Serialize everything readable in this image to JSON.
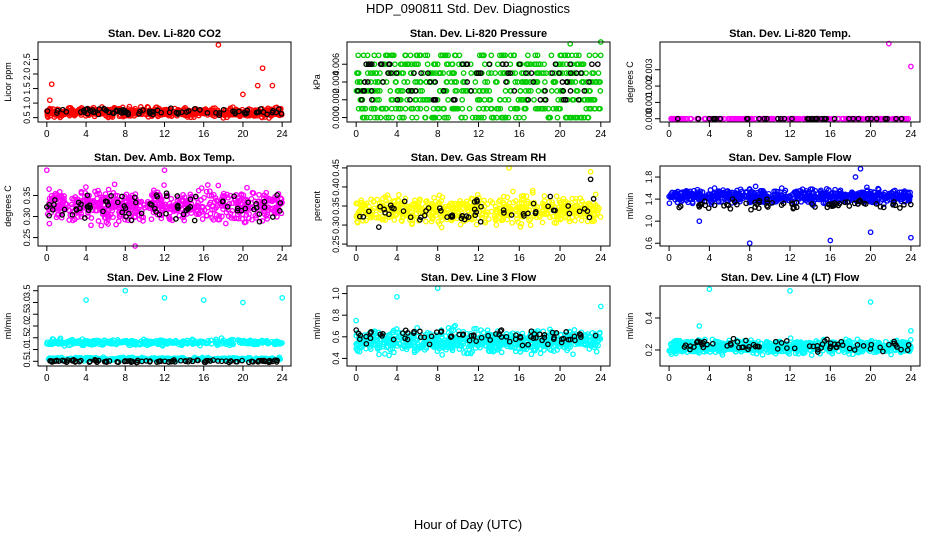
{
  "title": "HDP_090811  Std. Dev. Diagnostics",
  "xlabel": "Hour of Day (UTC)",
  "colors": {
    "black": "#000000",
    "red": "#ff0000",
    "green": "#00cc00",
    "magenta": "#ff00ff",
    "yellow": "#ffff00",
    "blue": "#0000ff",
    "cyan": "#00ffff"
  },
  "chart_data": [
    {
      "type": "scatter",
      "title": "Stan. Dev. Li-820 CO2",
      "ylabel": "Licor ppm",
      "xlim": [
        -0.9,
        24.9
      ],
      "ylim": [
        0.35,
        3.1
      ],
      "xticks": [
        0,
        4,
        8,
        12,
        16,
        20,
        24
      ],
      "yticks": [
        0.5,
        1.0,
        1.5,
        2.0,
        2.5
      ],
      "ytick_labels": [
        "0.5",
        "1.0",
        "1.5",
        "2.0",
        "2.5"
      ],
      "color": "red",
      "count": 620,
      "black_count": 80,
      "base": 0.68,
      "spread": 0.15,
      "black_base": 0.7,
      "black_spread": 0.1,
      "outliers": [
        [
          0.5,
          1.65
        ],
        [
          17.5,
          3.0
        ],
        [
          22,
          2.2
        ],
        [
          23,
          1.6
        ],
        [
          21.5,
          1.6
        ],
        [
          0.3,
          1.1
        ],
        [
          20,
          1.3
        ]
      ],
      "black_outliers": []
    },
    {
      "type": "scatter",
      "title": "Stan. Dev. Li-820 Pressure",
      "ylabel": "kPa",
      "xlim": [
        -0.9,
        24.9
      ],
      "ylim": [
        -0.0005,
        0.0085
      ],
      "xticks": [
        0,
        4,
        8,
        12,
        16,
        20,
        24
      ],
      "yticks": [
        0,
        0.002,
        0.004,
        0.006
      ],
      "ytick_labels": [
        "0.000",
        "0.002",
        "0.004",
        "0.006"
      ],
      "color": "green",
      "count": 560,
      "black_count": 80,
      "levels": [
        0,
        0.001,
        0.002,
        0.003,
        0.004,
        0.005,
        0.006,
        0.007
      ],
      "black_levels": [
        0.002,
        0.003,
        0.004,
        0.005,
        0.006
      ],
      "outliers": [
        [
          24,
          0.0085
        ],
        [
          21,
          0.0083
        ]
      ],
      "black_outliers": []
    },
    {
      "type": "scatter",
      "title": "Stan. Dev. Li-820 Temp.",
      "ylabel": "degrees C",
      "xlim": [
        -0.9,
        24.9
      ],
      "ylim": [
        -0.0002,
        0.0047
      ],
      "xticks": [
        0,
        4,
        8,
        12,
        16,
        20,
        24
      ],
      "yticks": [
        0,
        0.001,
        0.002,
        0.003
      ],
      "ytick_labels": [
        "0.000",
        "0.001",
        "0.002",
        "0.003"
      ],
      "color": "magenta",
      "count": 200,
      "black_count": 40,
      "levels": [
        0
      ],
      "black_levels": [
        0
      ],
      "outliers": [
        [
          21.8,
          0.0046
        ],
        [
          24,
          0.0032
        ]
      ],
      "black_outliers": []
    },
    {
      "type": "scatter",
      "title": "Stan. Dev. Amb. Box Temp.",
      "ylabel": "degrees C",
      "xlim": [
        -0.9,
        24.9
      ],
      "ylim": [
        0.23,
        0.42
      ],
      "xticks": [
        0,
        4,
        8,
        12,
        16,
        20,
        24
      ],
      "yticks": [
        0.25,
        0.3,
        0.35
      ],
      "ytick_labels": [
        "0.25",
        "0.30",
        "0.35"
      ],
      "color": "magenta",
      "count": 600,
      "black_count": 80,
      "base": 0.325,
      "spread": 0.035,
      "black_base": 0.325,
      "black_spread": 0.03,
      "outliers": [
        [
          9,
          0.23
        ],
        [
          0,
          0.41
        ],
        [
          12,
          0.41
        ]
      ],
      "black_outliers": []
    },
    {
      "type": "scatter",
      "title": "Stan. Dev. Gas Stream RH",
      "ylabel": "percent",
      "xlim": [
        -0.9,
        24.9
      ],
      "ylim": [
        0.245,
        0.455
      ],
      "xticks": [
        0,
        4,
        8,
        12,
        16,
        20,
        24
      ],
      "yticks": [
        0.25,
        0.3,
        0.35,
        0.4,
        0.45
      ],
      "ytick_labels": [
        "0.25",
        "0.30",
        "0.35",
        "0.40",
        "0.45"
      ],
      "color": "yellow",
      "count": 600,
      "black_count": 60,
      "base": 0.34,
      "spread": 0.035,
      "black_base": 0.335,
      "black_spread": 0.035,
      "outliers": [
        [
          15,
          0.45
        ],
        [
          23,
          0.44
        ]
      ],
      "black_outliers": [
        [
          23,
          0.42
        ]
      ]
    },
    {
      "type": "scatter",
      "title": "Stan. Dev. Sample Flow",
      "ylabel": "ml/min",
      "xlim": [
        -0.9,
        24.9
      ],
      "ylim": [
        0.55,
        2.0
      ],
      "xticks": [
        0,
        4,
        8,
        12,
        16,
        20,
        24
      ],
      "yticks": [
        0.6,
        1.0,
        1.4,
        1.8
      ],
      "ytick_labels": [
        "0.6",
        "1.0",
        "1.4",
        "1.8"
      ],
      "color": "blue",
      "count": 640,
      "black_count": 70,
      "base": 1.45,
      "spread": 0.12,
      "black_base": 1.3,
      "black_spread": 0.08,
      "outliers": [
        [
          8,
          0.6
        ],
        [
          16,
          0.65
        ],
        [
          24,
          0.7
        ],
        [
          19,
          1.95
        ],
        [
          3,
          1.0
        ],
        [
          20,
          0.8
        ],
        [
          18.5,
          1.8
        ]
      ],
      "black_outliers": []
    },
    {
      "type": "scatter",
      "title": "Stan. Dev. Line 2 Flow",
      "ylabel": "ml/min",
      "xlim": [
        -0.9,
        24.9
      ],
      "ylim": [
        0.3,
        3.7
      ],
      "xticks": [
        0,
        4,
        8,
        12,
        16,
        20,
        24
      ],
      "yticks": [
        0.5,
        1.0,
        1.5,
        2.0,
        2.5,
        3.0,
        3.5
      ],
      "ytick_labels": [
        "0.5",
        "1.0",
        "1.5",
        "2.0",
        "2.5",
        "3.0",
        "3.5"
      ],
      "bands": [
        [
          1.3,
          0.12
        ],
        [
          0.6,
          0.06
        ]
      ],
      "color": "cyan",
      "count": 700,
      "black_count": 100,
      "base": 0.55,
      "spread": 0.06,
      "black_base": 0.5,
      "black_spread": 0.06,
      "outliers": [
        [
          4,
          3.1
        ],
        [
          8,
          3.5
        ],
        [
          12,
          3.2
        ],
        [
          16,
          3.1
        ],
        [
          20,
          3.0
        ],
        [
          24,
          3.2
        ]
      ],
      "black_outliers": []
    },
    {
      "type": "scatter",
      "title": "Stan. Dev. Line 3 Flow",
      "ylabel": "ml/min",
      "xlim": [
        -0.9,
        24.9
      ],
      "ylim": [
        0.33,
        1.07
      ],
      "xticks": [
        0,
        4,
        8,
        12,
        16,
        20,
        24
      ],
      "yticks": [
        0.4,
        0.6,
        0.8,
        1.0
      ],
      "ytick_labels": [
        "0.4",
        "0.6",
        "0.8",
        "1.0"
      ],
      "color": "cyan",
      "count": 700,
      "black_count": 80,
      "base": 0.56,
      "spread": 0.1,
      "black_base": 0.6,
      "black_spread": 0.07,
      "outliers": [
        [
          4,
          0.97
        ],
        [
          8,
          1.05
        ],
        [
          24,
          0.88
        ],
        [
          0,
          0.75
        ]
      ],
      "black_outliers": []
    },
    {
      "type": "scatter",
      "title": "Stan. Dev. Line 4 (LT) Flow",
      "ylabel": "ml/min",
      "xlim": [
        -0.9,
        24.9
      ],
      "ylim": [
        0.1,
        0.6
      ],
      "xticks": [
        0,
        4,
        8,
        12,
        16,
        20,
        24
      ],
      "yticks": [
        0.2,
        0.4
      ],
      "ytick_labels": [
        "0.2",
        "0.4"
      ],
      "color": "cyan",
      "count": 700,
      "black_count": 70,
      "base": 0.22,
      "spread": 0.04,
      "black_base": 0.23,
      "black_spread": 0.035,
      "outliers": [
        [
          4,
          0.58
        ],
        [
          12,
          0.57
        ],
        [
          20,
          0.5
        ],
        [
          24,
          0.32
        ],
        [
          3,
          0.35
        ]
      ],
      "black_outliers": []
    }
  ]
}
